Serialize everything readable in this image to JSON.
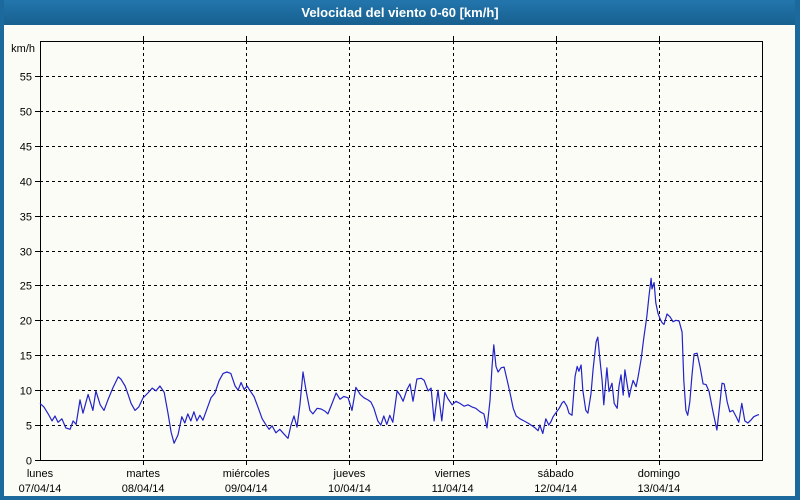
{
  "window": {
    "title": "Velocidad del viento 0-60 [km/h]"
  },
  "colors": {
    "titlebar": "#1c699d",
    "window_border": "#1c699d",
    "background": "#fcfcf7",
    "grid": "#000000",
    "line": "#2323c8",
    "title_text": "#ffffff",
    "axis_text": "#000000"
  },
  "chart_data": {
    "type": "line",
    "title": "Velocidad del viento 0-60 [km/h]",
    "ylabel": "km/h",
    "xlabel": "",
    "ylim": [
      0,
      60
    ],
    "yticks": [
      0,
      5,
      10,
      15,
      20,
      25,
      30,
      35,
      40,
      45,
      50,
      55
    ],
    "grid": "dashed",
    "legend": null,
    "x_unit": "hours",
    "x_range": [
      0,
      168
    ],
    "x_days": [
      {
        "name": "lunes",
        "date": "07/04/14"
      },
      {
        "name": "martes",
        "date": "08/04/14"
      },
      {
        "name": "miércoles",
        "date": "09/04/14"
      },
      {
        "name": "jueves",
        "date": "10/04/14"
      },
      {
        "name": "viernes",
        "date": "11/04/14"
      },
      {
        "name": "sábado",
        "date": "12/04/14"
      },
      {
        "name": "domingo",
        "date": "13/04/14"
      }
    ],
    "series": [
      {
        "name": "Velocidad del viento",
        "color": "#2323c8",
        "points": [
          [
            0,
            8.1
          ],
          [
            0.9,
            7.6
          ],
          [
            1.9,
            6.6
          ],
          [
            2.8,
            5.6
          ],
          [
            3.5,
            6.3
          ],
          [
            4.2,
            5.4
          ],
          [
            5.1,
            5.9
          ],
          [
            6,
            4.6
          ],
          [
            7,
            4.4
          ],
          [
            7.7,
            5.6
          ],
          [
            8.4,
            5.1
          ],
          [
            9.3,
            8.6
          ],
          [
            10,
            6.7
          ],
          [
            11.2,
            9.4
          ],
          [
            12.3,
            7.1
          ],
          [
            13,
            9.9
          ],
          [
            14,
            7.9
          ],
          [
            14.9,
            7.1
          ],
          [
            15.8,
            8.6
          ],
          [
            17,
            10.4
          ],
          [
            18.2,
            11.9
          ],
          [
            18.8,
            11.6
          ],
          [
            19.8,
            10.6
          ],
          [
            20.5,
            9.4
          ],
          [
            21.2,
            8.1
          ],
          [
            22.1,
            7.1
          ],
          [
            23,
            7.6
          ],
          [
            24,
            8.9
          ],
          [
            25.1,
            9.6
          ],
          [
            26.1,
            10.3
          ],
          [
            27,
            9.9
          ],
          [
            27.9,
            10.6
          ],
          [
            28.9,
            9.7
          ],
          [
            29.8,
            6.6
          ],
          [
            30.5,
            4
          ],
          [
            31.2,
            2.4
          ],
          [
            32.1,
            3.6
          ],
          [
            33,
            6.2
          ],
          [
            33.7,
            5.3
          ],
          [
            34.4,
            6.6
          ],
          [
            35.1,
            5.6
          ],
          [
            35.8,
            6.9
          ],
          [
            36.5,
            5.6
          ],
          [
            37.2,
            6.4
          ],
          [
            37.9,
            5.7
          ],
          [
            38.9,
            7.4
          ],
          [
            39.8,
            8.9
          ],
          [
            40.7,
            9.6
          ],
          [
            41.7,
            11.4
          ],
          [
            42.6,
            12.4
          ],
          [
            43.5,
            12.6
          ],
          [
            44.4,
            12.4
          ],
          [
            45.4,
            10.6
          ],
          [
            46.1,
            10
          ],
          [
            46.8,
            11.1
          ],
          [
            47.5,
            10.1
          ],
          [
            48.2,
            10.6
          ],
          [
            48.9,
            9.9
          ],
          [
            49.8,
            9.1
          ],
          [
            50.7,
            7.6
          ],
          [
            51.7,
            5.9
          ],
          [
            52.6,
            5
          ],
          [
            53.3,
            4.4
          ],
          [
            54,
            4.9
          ],
          [
            54.9,
            3.9
          ],
          [
            55.8,
            4.4
          ],
          [
            56.8,
            3.7
          ],
          [
            57.7,
            3.1
          ],
          [
            58.4,
            5
          ],
          [
            59.1,
            6.3
          ],
          [
            59.8,
            4.7
          ],
          [
            60.5,
            8
          ],
          [
            61.2,
            12.6
          ],
          [
            61.9,
            10
          ],
          [
            62.8,
            7.1
          ],
          [
            63.5,
            6.6
          ],
          [
            64.5,
            7.4
          ],
          [
            65.4,
            7.3
          ],
          [
            66.3,
            7
          ],
          [
            67,
            6.6
          ],
          [
            67.9,
            8
          ],
          [
            68.9,
            9.6
          ],
          [
            69.8,
            8.7
          ],
          [
            70.7,
            9.1
          ],
          [
            71.7,
            8.9
          ],
          [
            72.6,
            7.1
          ],
          [
            73.5,
            10.4
          ],
          [
            74.5,
            9.4
          ],
          [
            75.4,
            8.9
          ],
          [
            76.3,
            8.6
          ],
          [
            77,
            8.3
          ],
          [
            77.7,
            7.4
          ],
          [
            78.6,
            5.6
          ],
          [
            79.3,
            5
          ],
          [
            80,
            6.3
          ],
          [
            80.7,
            5.1
          ],
          [
            81.4,
            6.4
          ],
          [
            82.1,
            5.4
          ],
          [
            83.1,
            9.9
          ],
          [
            83.8,
            9.3
          ],
          [
            84.5,
            8.4
          ],
          [
            85.4,
            10.1
          ],
          [
            86.1,
            10.9
          ],
          [
            86.8,
            8.4
          ],
          [
            87.7,
            11.6
          ],
          [
            88.7,
            11.7
          ],
          [
            89.4,
            11.4
          ],
          [
            90.3,
            9.9
          ],
          [
            91,
            10.3
          ],
          [
            91.7,
            5.6
          ],
          [
            92.6,
            10
          ],
          [
            93.5,
            5.6
          ],
          [
            94.2,
            9.7
          ],
          [
            94.9,
            8.8
          ],
          [
            95.9,
            7.9
          ],
          [
            96.8,
            8.4
          ],
          [
            97.7,
            8.1
          ],
          [
            98.7,
            7.7
          ],
          [
            99.6,
            7.9
          ],
          [
            100.5,
            7.6
          ],
          [
            101.4,
            7.4
          ],
          [
            102.4,
            6.9
          ],
          [
            103.3,
            6.6
          ],
          [
            104,
            4.6
          ],
          [
            104.7,
            8.5
          ],
          [
            105.2,
            13.5
          ],
          [
            105.6,
            16.5
          ],
          [
            106.1,
            13.4
          ],
          [
            106.6,
            12.6
          ],
          [
            107.3,
            13.2
          ],
          [
            108,
            13.3
          ],
          [
            108.7,
            11.4
          ],
          [
            109.4,
            9.5
          ],
          [
            110.1,
            7.4
          ],
          [
            110.8,
            6.3
          ],
          [
            111.7,
            5.9
          ],
          [
            112.6,
            5.6
          ],
          [
            113.5,
            5.3
          ],
          [
            114.5,
            4.9
          ],
          [
            115.2,
            4.6
          ],
          [
            115.9,
            4.2
          ],
          [
            116.3,
            5
          ],
          [
            117,
            3.8
          ],
          [
            117.7,
            5.9
          ],
          [
            118.4,
            5
          ],
          [
            118.9,
            5.5
          ],
          [
            119.4,
            6.2
          ],
          [
            120.1,
            6.8
          ],
          [
            120.8,
            7.4
          ],
          [
            121.5,
            8.2
          ],
          [
            121.9,
            8.4
          ],
          [
            122.6,
            7.7
          ],
          [
            123.1,
            6.7
          ],
          [
            123.8,
            6.4
          ],
          [
            124.5,
            12
          ],
          [
            125,
            13.4
          ],
          [
            125.4,
            12.7
          ],
          [
            125.9,
            13.6
          ],
          [
            126.3,
            10
          ],
          [
            127,
            7.1
          ],
          [
            127.5,
            6.7
          ],
          [
            128.2,
            9.5
          ],
          [
            128.7,
            13
          ],
          [
            129.4,
            16.9
          ],
          [
            129.8,
            17.6
          ],
          [
            130.3,
            14.3
          ],
          [
            130.8,
            11.4
          ],
          [
            131.2,
            7.9
          ],
          [
            131.9,
            13.2
          ],
          [
            132.4,
            9.8
          ],
          [
            133.1,
            11
          ],
          [
            133.6,
            8.1
          ],
          [
            134.3,
            7.4
          ],
          [
            134.7,
            10.5
          ],
          [
            135.2,
            12.2
          ],
          [
            135.7,
            9.3
          ],
          [
            136.1,
            12.9
          ],
          [
            136.6,
            10.9
          ],
          [
            137.1,
            9
          ],
          [
            137.5,
            10.2
          ],
          [
            138,
            11.4
          ],
          [
            138.7,
            10.5
          ],
          [
            139.2,
            12
          ],
          [
            139.9,
            14.5
          ],
          [
            140.5,
            17.5
          ],
          [
            141.2,
            20.5
          ],
          [
            141.7,
            23.5
          ],
          [
            142.2,
            26
          ],
          [
            142.4,
            24.5
          ],
          [
            142.9,
            25.4
          ],
          [
            143.3,
            22.5
          ],
          [
            143.8,
            21
          ],
          [
            144.3,
            20.2
          ],
          [
            144.7,
            19.7
          ],
          [
            145.2,
            19.4
          ],
          [
            145.9,
            20.9
          ],
          [
            146.6,
            20.5
          ],
          [
            147.3,
            19.8
          ],
          [
            148,
            20
          ],
          [
            148.7,
            19.9
          ],
          [
            149.4,
            18.3
          ],
          [
            149.8,
            11.4
          ],
          [
            150.3,
            7.1
          ],
          [
            150.7,
            6.4
          ],
          [
            151.2,
            8.3
          ],
          [
            151.7,
            12
          ],
          [
            152.2,
            15.2
          ],
          [
            152.9,
            15.3
          ],
          [
            153.6,
            13.3
          ],
          [
            154.3,
            10.9
          ],
          [
            155,
            10.8
          ],
          [
            155.7,
            9.8
          ],
          [
            156.6,
            6.9
          ],
          [
            157.5,
            4.3
          ],
          [
            158.2,
            8.1
          ],
          [
            158.7,
            11
          ],
          [
            159.2,
            10.9
          ],
          [
            159.9,
            8.3
          ],
          [
            160.5,
            6.9
          ],
          [
            161.2,
            7.1
          ],
          [
            161.9,
            6.3
          ],
          [
            162.6,
            5.4
          ],
          [
            163.3,
            8.1
          ],
          [
            164,
            5.6
          ],
          [
            164.7,
            5.3
          ],
          [
            165.4,
            5.7
          ],
          [
            166.1,
            6.2
          ],
          [
            166.8,
            6.4
          ],
          [
            167.3,
            6.5
          ]
        ]
      }
    ]
  }
}
